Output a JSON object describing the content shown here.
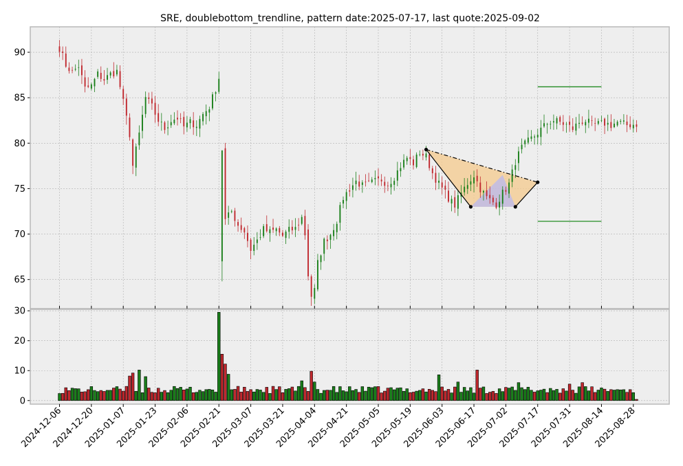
{
  "chart_data": {
    "type": "candlestick",
    "title": "SRE, doublebottom_trendline, pattern date:2025-07-17, last quote:2025-09-02",
    "colors": {
      "up": "#1a7f1a",
      "down": "#c0282e",
      "panel_bg": "#eeeeee",
      "grid": "#b0b0b0",
      "frame": "#b8b8b8",
      "level_line": "#228b22",
      "pattern_fill": "#f4c98c",
      "pattern_fill_inner": "#b8b8f0"
    },
    "price_panel": {
      "ylim": [
        61.8,
        92.8
      ],
      "yticks": [
        65,
        70,
        75,
        80,
        85,
        90
      ],
      "grid": true
    },
    "volume_panel": {
      "ylim": [
        -1.2,
        30.5
      ],
      "yticks": [
        0,
        10,
        20,
        30
      ],
      "grid": true
    },
    "x_axis": {
      "tick_labels": [
        "2024-12-06",
        "2024-12-20",
        "2025-01-07",
        "2025-01-23",
        "2025-02-06",
        "2025-02-21",
        "2025-03-07",
        "2025-03-21",
        "2025-04-04",
        "2025-04-21",
        "2025-05-05",
        "2025-05-19",
        "2025-06-03",
        "2025-06-17",
        "2025-07-02",
        "2025-07-17",
        "2025-07-31",
        "2025-08-14",
        "2025-08-28"
      ],
      "tick_indices": [
        0,
        10,
        20,
        30,
        40,
        50,
        60,
        70,
        80,
        90,
        100,
        110,
        120,
        130,
        140,
        150,
        160,
        170,
        180
      ]
    },
    "price_anchors": [
      [
        0,
        90.5
      ],
      [
        2,
        88.6
      ],
      [
        4,
        87.8
      ],
      [
        6,
        88.5
      ],
      [
        8,
        86.0
      ],
      [
        10,
        86.3
      ],
      [
        12,
        87.6
      ],
      [
        14,
        87.0
      ],
      [
        16,
        87.6
      ],
      [
        18,
        87.9
      ],
      [
        20,
        84.5
      ],
      [
        22,
        81.0
      ],
      [
        23,
        77.5
      ],
      [
        25,
        81.0
      ],
      [
        27,
        85.0
      ],
      [
        29,
        84.0
      ],
      [
        31,
        82.5
      ],
      [
        33,
        81.6
      ],
      [
        35,
        82.5
      ],
      [
        37,
        82.8
      ],
      [
        39,
        81.8
      ],
      [
        41,
        82.3
      ],
      [
        43,
        82.0
      ],
      [
        45,
        83.2
      ],
      [
        47,
        84.0
      ],
      [
        49,
        86.0
      ],
      [
        50,
        87.2
      ],
      [
        52,
        71.5
      ],
      [
        54,
        72.5
      ],
      [
        56,
        71.0
      ],
      [
        58,
        70.3
      ],
      [
        60,
        68.3
      ],
      [
        62,
        69.3
      ],
      [
        64,
        70.5
      ],
      [
        66,
        70.2
      ],
      [
        68,
        70.5
      ],
      [
        70,
        69.8
      ],
      [
        72,
        70.4
      ],
      [
        74,
        70.6
      ],
      [
        76,
        71.8
      ],
      [
        77,
        70.0
      ],
      [
        78,
        65.5
      ],
      [
        79,
        63.2
      ],
      [
        80,
        63.8
      ],
      [
        81,
        66.8
      ],
      [
        83,
        69.2
      ],
      [
        85,
        70.0
      ],
      [
        87,
        71.5
      ],
      [
        89,
        74.0
      ],
      [
        91,
        75.0
      ],
      [
        93,
        75.8
      ],
      [
        95,
        75.3
      ],
      [
        97,
        75.5
      ],
      [
        99,
        75.8
      ],
      [
        101,
        76.0
      ],
      [
        103,
        75.5
      ],
      [
        105,
        76.3
      ],
      [
        107,
        77.5
      ],
      [
        109,
        78.4
      ],
      [
        111,
        77.8
      ],
      [
        113,
        79.0
      ],
      [
        115,
        78.5
      ],
      [
        117,
        76.7
      ],
      [
        119,
        75.5
      ],
      [
        121,
        74.5
      ],
      [
        123,
        73.5
      ],
      [
        124,
        73.2
      ],
      [
        126,
        74.5
      ],
      [
        128,
        75.6
      ],
      [
        130,
        76.5
      ],
      [
        132,
        75.0
      ],
      [
        134,
        74.0
      ],
      [
        136,
        73.5
      ],
      [
        137,
        73.3
      ],
      [
        139,
        74.5
      ],
      [
        141,
        75.5
      ],
      [
        143,
        78.0
      ],
      [
        145,
        79.5
      ],
      [
        147,
        80.2
      ],
      [
        149,
        80.8
      ],
      [
        151,
        81.5
      ],
      [
        153,
        82.2
      ],
      [
        155,
        82.5
      ],
      [
        157,
        82.3
      ],
      [
        159,
        82.0
      ],
      [
        161,
        81.6
      ],
      [
        163,
        82.3
      ],
      [
        165,
        82.5
      ],
      [
        167,
        82.0
      ],
      [
        169,
        82.1
      ],
      [
        171,
        82.2
      ],
      [
        173,
        82.0
      ],
      [
        175,
        82.3
      ],
      [
        178,
        82.0
      ],
      [
        181,
        82.1
      ]
    ],
    "volume_notes": {
      "typical": 3.2,
      "spikes": [
        [
          50,
          29.5
        ],
        [
          51,
          15.5
        ],
        [
          52,
          12.2
        ],
        [
          53,
          8.8
        ],
        [
          22,
          8.2
        ],
        [
          23,
          9.2
        ],
        [
          25,
          10.2
        ],
        [
          27,
          8.0
        ],
        [
          79,
          9.8
        ],
        [
          76,
          6.6
        ],
        [
          80,
          6.2
        ],
        [
          119,
          8.6
        ],
        [
          131,
          10.2
        ],
        [
          125,
          6.2
        ],
        [
          144,
          6.0
        ],
        [
          160,
          5.5
        ],
        [
          164,
          6.0
        ]
      ]
    },
    "pattern": {
      "name": "doublebottom_trendline",
      "points": [
        [
          115,
          79.3
        ],
        [
          129,
          73.0
        ],
        [
          143,
          73.0
        ],
        [
          150,
          75.7
        ]
      ],
      "peak": [
        139,
        76.5
      ],
      "trendline": [
        [
          115,
          79.3
        ],
        [
          150,
          75.7
        ]
      ]
    },
    "levels": [
      {
        "value": 86.2,
        "from": 150,
        "to": 170
      },
      {
        "value": 71.4,
        "from": 150,
        "to": 170
      }
    ]
  }
}
